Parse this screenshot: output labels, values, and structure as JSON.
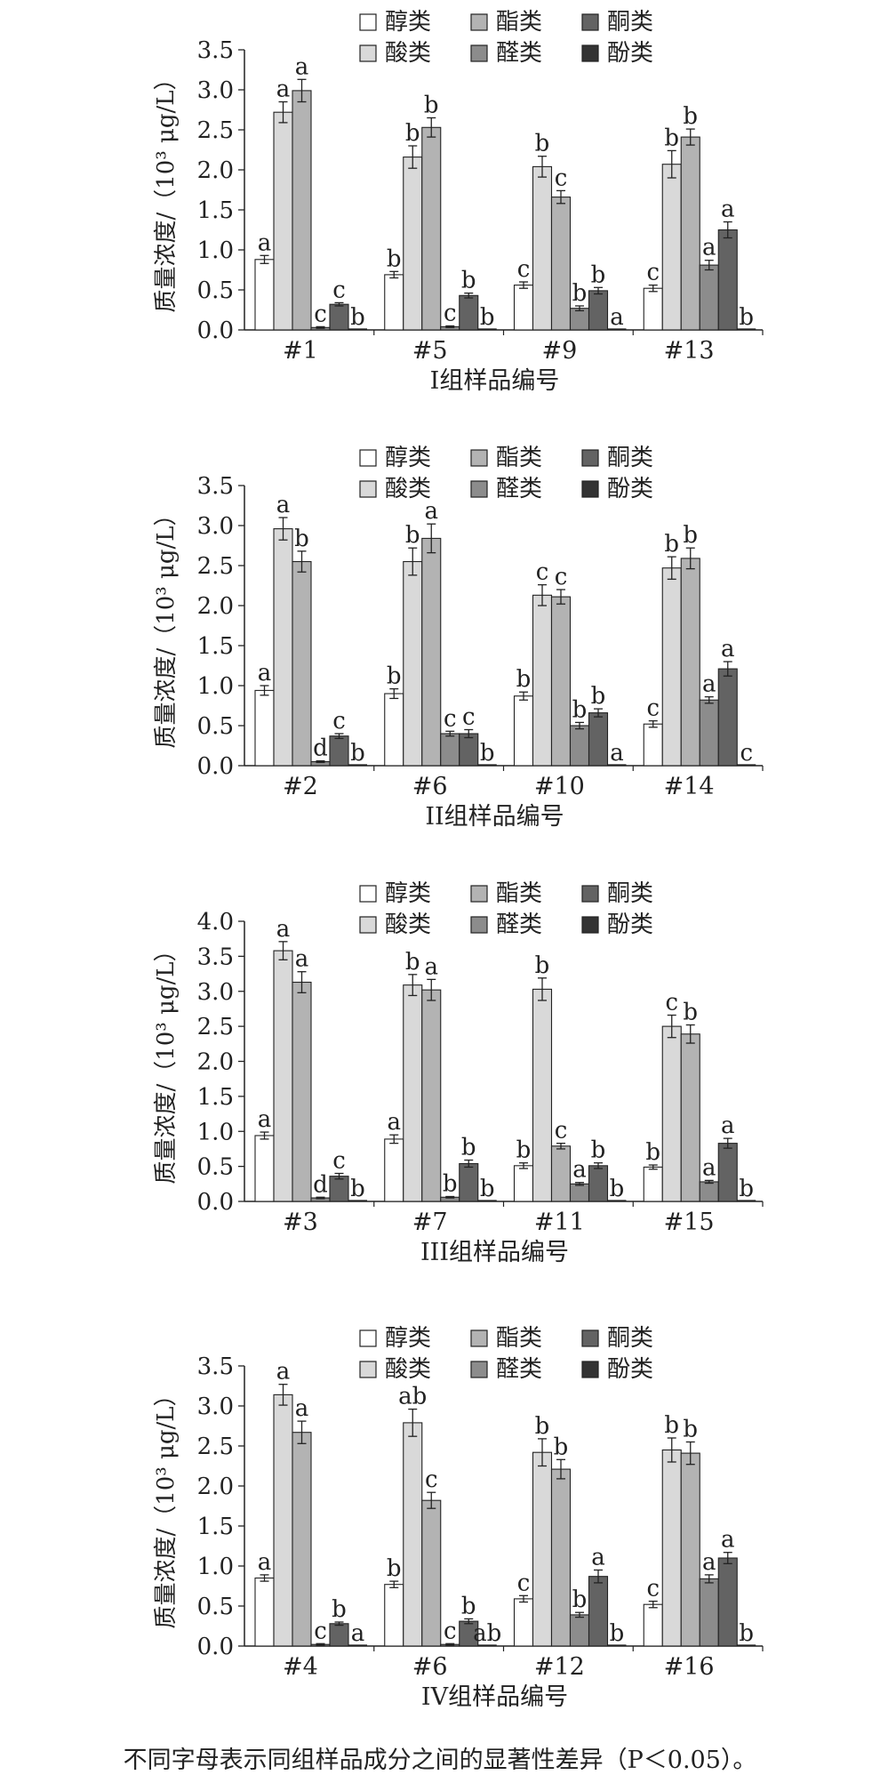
{
  "legend": [
    "醇类",
    "酸类",
    "酯类",
    "醛类",
    "酮类",
    "酚类"
  ],
  "series_colors": [
    "#ffffff",
    "#d9d9d9",
    "#b3b3b3",
    "#8c8c8c",
    "#636363",
    "#333333"
  ],
  "ylabel": "质量浓度/（10³ μg/L）",
  "footnote": "不同字母表示同组样品成分之间的显著性差异（P＜0.05）。",
  "chart_data": [
    {
      "type": "bar",
      "xlabel": "I组样品编号",
      "categories": [
        "#1",
        "#5",
        "#9",
        "#13"
      ],
      "ylim": [
        0,
        3.5
      ],
      "yticks": [
        "0.0",
        "0.5",
        "1.0",
        "1.5",
        "2.0",
        "2.5",
        "3.0",
        "3.5"
      ],
      "series": [
        {
          "name": "醇类",
          "values": [
            0.88,
            0.69,
            0.56,
            0.52
          ],
          "errors": [
            0.05,
            0.04,
            0.04,
            0.04
          ],
          "labels": [
            "a",
            "b",
            "c",
            "c"
          ]
        },
        {
          "name": "酸类",
          "values": [
            2.72,
            2.16,
            2.04,
            2.07
          ],
          "errors": [
            0.13,
            0.14,
            0.13,
            0.17
          ],
          "labels": [
            "a",
            "b",
            "b",
            "b"
          ]
        },
        {
          "name": "酯类",
          "values": [
            2.99,
            2.53,
            1.66,
            2.41
          ],
          "errors": [
            0.14,
            0.12,
            0.08,
            0.1
          ],
          "labels": [
            "a",
            "b",
            "c",
            "b"
          ]
        },
        {
          "name": "醛类",
          "values": [
            0.03,
            0.04,
            0.27,
            0.81
          ],
          "errors": [
            0.01,
            0.01,
            0.03,
            0.06
          ],
          "labels": [
            "c",
            "c",
            "b",
            "a"
          ]
        },
        {
          "name": "酮类",
          "values": [
            0.32,
            0.43,
            0.49,
            1.25
          ],
          "errors": [
            0.02,
            0.03,
            0.04,
            0.1
          ],
          "labels": [
            "c",
            "b",
            "b",
            "a"
          ]
        },
        {
          "name": "酚类",
          "values": [
            0.0,
            0.0,
            0.0,
            0.0
          ],
          "errors": [
            0,
            0,
            0,
            0
          ],
          "labels": [
            "b",
            "b",
            "a",
            "b"
          ]
        }
      ]
    },
    {
      "type": "bar",
      "xlabel": "II组样品编号",
      "categories": [
        "#2",
        "#6",
        "#10",
        "#14"
      ],
      "ylim": [
        0,
        3.5
      ],
      "yticks": [
        "0.0",
        "0.5",
        "1.0",
        "1.5",
        "2.0",
        "2.5",
        "3.0",
        "3.5"
      ],
      "series": [
        {
          "name": "醇类",
          "values": [
            0.94,
            0.9,
            0.87,
            0.52
          ],
          "errors": [
            0.06,
            0.06,
            0.05,
            0.04
          ],
          "labels": [
            "a",
            "b",
            "b",
            "c"
          ]
        },
        {
          "name": "酸类",
          "values": [
            2.96,
            2.55,
            2.13,
            2.47
          ],
          "errors": [
            0.14,
            0.17,
            0.13,
            0.14
          ],
          "labels": [
            "a",
            "b",
            "c",
            "b"
          ]
        },
        {
          "name": "酯类",
          "values": [
            2.55,
            2.84,
            2.11,
            2.59
          ],
          "errors": [
            0.13,
            0.18,
            0.09,
            0.13
          ],
          "labels": [
            "b",
            "a",
            "c",
            "b"
          ]
        },
        {
          "name": "醛类",
          "values": [
            0.05,
            0.4,
            0.5,
            0.82
          ],
          "errors": [
            0.01,
            0.03,
            0.04,
            0.04
          ],
          "labels": [
            "d",
            "c",
            "b",
            "a"
          ]
        },
        {
          "name": "酮类",
          "values": [
            0.37,
            0.4,
            0.66,
            1.21
          ],
          "errors": [
            0.03,
            0.05,
            0.05,
            0.09
          ],
          "labels": [
            "c",
            "c",
            "b",
            "a"
          ]
        },
        {
          "name": "酚类",
          "values": [
            0.0,
            0.0,
            0.0,
            0.0
          ],
          "errors": [
            0,
            0,
            0,
            0
          ],
          "labels": [
            "b",
            "b",
            "a",
            "c"
          ]
        }
      ]
    },
    {
      "type": "bar",
      "xlabel": "III组样品编号",
      "categories": [
        "#3",
        "#7",
        "#11",
        "#15"
      ],
      "ylim": [
        0,
        4.0
      ],
      "yticks": [
        "0.0",
        "0.5",
        "1.0",
        "1.5",
        "2.0",
        "2.5",
        "3.0",
        "3.5",
        "4.0"
      ],
      "series": [
        {
          "name": "醇类",
          "values": [
            0.94,
            0.89,
            0.51,
            0.49
          ],
          "errors": [
            0.05,
            0.06,
            0.04,
            0.03
          ],
          "labels": [
            "a",
            "a",
            "b",
            "b"
          ]
        },
        {
          "name": "酸类",
          "values": [
            3.58,
            3.09,
            3.03,
            2.5
          ],
          "errors": [
            0.13,
            0.15,
            0.16,
            0.16
          ],
          "labels": [
            "a",
            "b",
            "b",
            "c"
          ]
        },
        {
          "name": "酯类",
          "values": [
            3.13,
            3.02,
            0.79,
            2.39
          ],
          "errors": [
            0.15,
            0.15,
            0.04,
            0.13
          ],
          "labels": [
            "a",
            "a",
            "c",
            "b"
          ]
        },
        {
          "name": "醛类",
          "values": [
            0.05,
            0.06,
            0.25,
            0.28
          ],
          "errors": [
            0.01,
            0.01,
            0.02,
            0.02
          ],
          "labels": [
            "d",
            "b",
            "a",
            "a"
          ]
        },
        {
          "name": "酮类",
          "values": [
            0.36,
            0.54,
            0.51,
            0.83
          ],
          "errors": [
            0.04,
            0.05,
            0.04,
            0.07
          ],
          "labels": [
            "c",
            "b",
            "b",
            "a"
          ]
        },
        {
          "name": "酚类",
          "values": [
            0.0,
            0.0,
            0.0,
            0.0
          ],
          "errors": [
            0,
            0,
            0,
            0
          ],
          "labels": [
            "b",
            "b",
            "b",
            "b"
          ]
        }
      ]
    },
    {
      "type": "bar",
      "xlabel": "IV组样品编号",
      "categories": [
        "#4",
        "#6",
        "#12",
        "#16"
      ],
      "ylim": [
        0,
        3.5
      ],
      "yticks": [
        "0.0",
        "0.5",
        "1.0",
        "1.5",
        "2.0",
        "2.5",
        "3.0",
        "3.5"
      ],
      "series": [
        {
          "name": "醇类",
          "values": [
            0.85,
            0.77,
            0.59,
            0.52
          ],
          "errors": [
            0.04,
            0.04,
            0.04,
            0.04
          ],
          "labels": [
            "a",
            "b",
            "c",
            "c"
          ]
        },
        {
          "name": "酸类",
          "values": [
            3.14,
            2.79,
            2.42,
            2.45
          ],
          "errors": [
            0.13,
            0.17,
            0.17,
            0.15
          ],
          "labels": [
            "a",
            "ab",
            "b",
            "b"
          ]
        },
        {
          "name": "酯类",
          "values": [
            2.67,
            1.82,
            2.21,
            2.41
          ],
          "errors": [
            0.14,
            0.1,
            0.12,
            0.14
          ],
          "labels": [
            "a",
            "c",
            "b",
            "b"
          ]
        },
        {
          "name": "醛类",
          "values": [
            0.02,
            0.02,
            0.39,
            0.84
          ],
          "errors": [
            0.01,
            0.01,
            0.03,
            0.05
          ],
          "labels": [
            "c",
            "c",
            "b",
            "a"
          ]
        },
        {
          "name": "酮类",
          "values": [
            0.28,
            0.31,
            0.87,
            1.1
          ],
          "errors": [
            0.02,
            0.03,
            0.08,
            0.07
          ],
          "labels": [
            "b",
            "b",
            "a",
            "a"
          ]
        },
        {
          "name": "酚类",
          "values": [
            0.0,
            0.0,
            0.0,
            0.0
          ],
          "errors": [
            0,
            0,
            0,
            0
          ],
          "labels": [
            "a",
            "ab",
            "b",
            "b"
          ]
        }
      ]
    }
  ]
}
